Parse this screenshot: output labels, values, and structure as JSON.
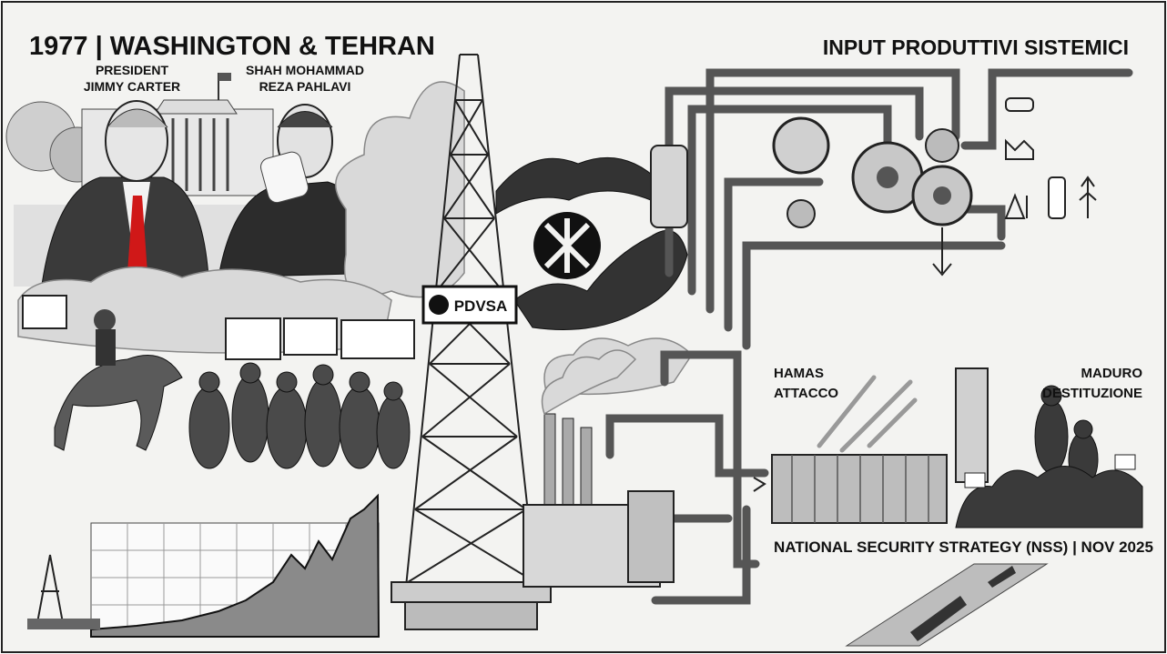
{
  "header": {
    "title": "1977 | WASHINGTON & TEHRAN",
    "subtitle": "INPUT PRODUTTIVI SISTEMICI"
  },
  "labels": {
    "carter": [
      "PRESIDENT",
      "JIMMY CARTER"
    ],
    "shah": [
      "SHAH MOHAMMAD",
      "REZA PAHLAVI"
    ],
    "sign": "PDVSA",
    "hamas": [
      "HAMAS",
      "ATTACCO"
    ],
    "maduro": [
      "MADURO",
      "DESTITUZIONE"
    ]
  },
  "footer": {
    "nss": "NATIONAL SECURITY STRATEGY (NSS) | NOV 2025"
  }
}
